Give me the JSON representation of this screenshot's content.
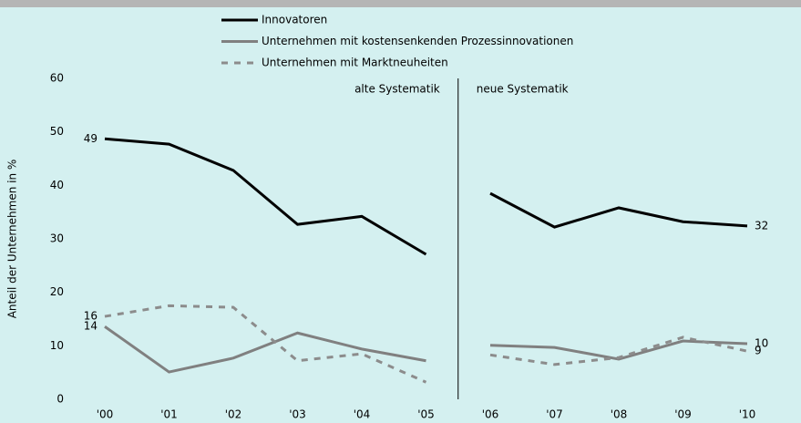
{
  "chart_data": {
    "type": "line",
    "y_label": "Anteil der Unternehmen in %",
    "categories": [
      "'00",
      "'01",
      "'02",
      "'03",
      "'04",
      "'05",
      "'06",
      "'07",
      "'08",
      "'09",
      "'10"
    ],
    "series": [
      {
        "name": "Innovatoren",
        "color": "#000000",
        "dash": false,
        "values": [
          48.7,
          47.7,
          42.8,
          32.7,
          34.2,
          27.1,
          38.5,
          32.2,
          35.8,
          33.2,
          32.4
        ],
        "value_labels": [
          "49",
          null,
          null,
          null,
          null,
          null,
          null,
          null,
          null,
          null,
          "32"
        ]
      },
      {
        "name": "Unternehmen mit kostensenkenden Prozessinnovationen",
        "color": "#808080",
        "dash": false,
        "values": [
          13.6,
          5.1,
          7.7,
          12.4,
          9.4,
          7.2,
          10.1,
          9.7,
          7.5,
          10.9,
          10.4
        ],
        "value_labels": [
          "14",
          null,
          null,
          null,
          null,
          null,
          null,
          null,
          null,
          null,
          "10"
        ]
      },
      {
        "name": "Unternehmen mit Marktneuheiten",
        "color": "#8c8c8c",
        "dash": true,
        "values": [
          15.5,
          17.5,
          17.2,
          7.2,
          8.5,
          3.2,
          8.3,
          6.5,
          7.8,
          11.6,
          9.0
        ],
        "value_labels": [
          "16",
          null,
          null,
          null,
          null,
          null,
          null,
          null,
          null,
          null,
          "9"
        ]
      }
    ],
    "divider_after_index": 5,
    "annotations": [
      "alte Systematik",
      "neue Systematik"
    ],
    "ylim": [
      0,
      60
    ],
    "yticks": [
      0,
      10,
      20,
      30,
      40,
      50,
      60
    ],
    "grid": false
  }
}
